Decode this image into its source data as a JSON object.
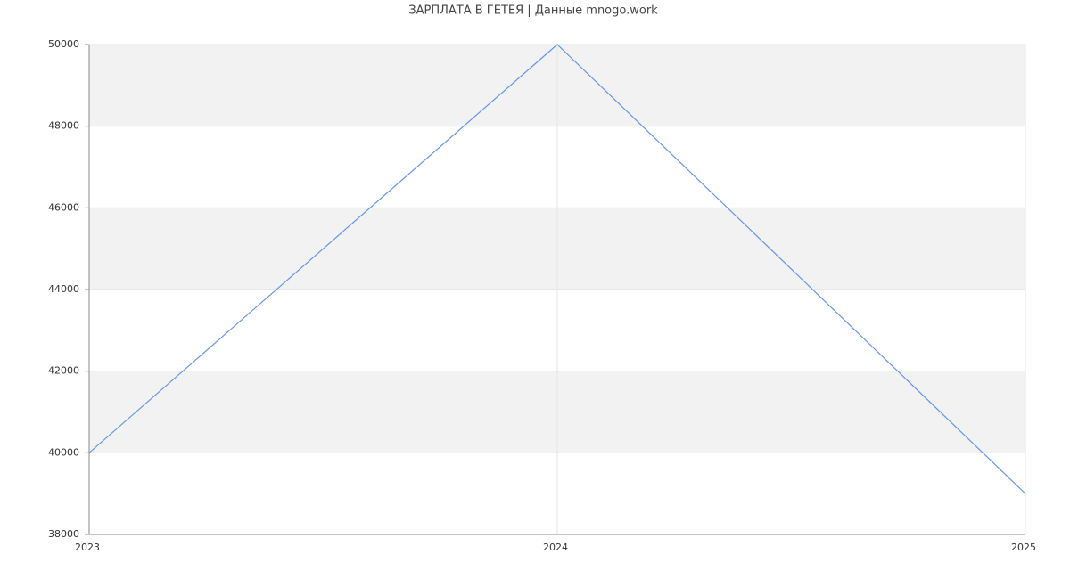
{
  "chart_data": {
    "type": "line",
    "title": "ЗАРПЛАТА В ГЕТЕЯ | Данные mnogo.work",
    "x": [
      2023,
      2024,
      2025
    ],
    "series": [
      {
        "name": null,
        "color": "#6495ed",
        "values": [
          40000,
          50000,
          39000
        ]
      }
    ],
    "xlim": [
      2023,
      2025
    ],
    "xticks": [
      2023,
      2024,
      2025
    ],
    "ylim": [
      38000,
      50000
    ],
    "yticks": [
      38000,
      40000,
      42000,
      44000,
      46000,
      48000,
      50000
    ],
    "grid": true
  }
}
